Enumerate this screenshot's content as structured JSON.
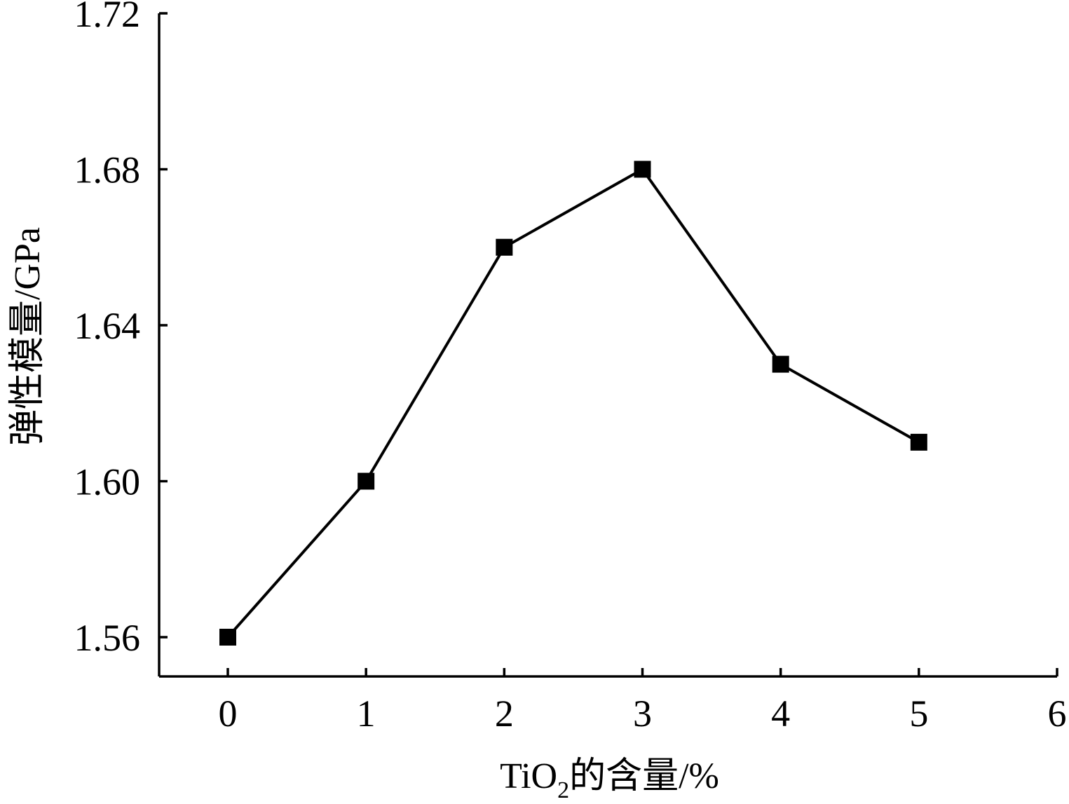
{
  "chart_data": {
    "type": "line",
    "title": "",
    "xlabel": {
      "prefix": "TiO",
      "subscript": "2",
      "suffix": "的含量/%"
    },
    "ylabel": "弹性模量/GPa",
    "xlim": [
      -0.5,
      6
    ],
    "ylim": [
      1.55,
      1.72
    ],
    "x_ticks": [
      0,
      1,
      2,
      3,
      4,
      5,
      6
    ],
    "x_tick_labels": [
      "0",
      "1",
      "2",
      "3",
      "4",
      "5",
      "6"
    ],
    "y_ticks": [
      1.56,
      1.6,
      1.64,
      1.68,
      1.72
    ],
    "y_tick_labels": [
      "1.56",
      "1.60",
      "1.64",
      "1.68",
      "1.72"
    ],
    "grid": false,
    "legend": "none",
    "series": [
      {
        "marker": "square",
        "color": "#000000",
        "x": [
          0,
          1,
          2,
          3,
          4,
          5
        ],
        "y": [
          1.56,
          1.6,
          1.66,
          1.68,
          1.63,
          1.61
        ]
      }
    ]
  }
}
